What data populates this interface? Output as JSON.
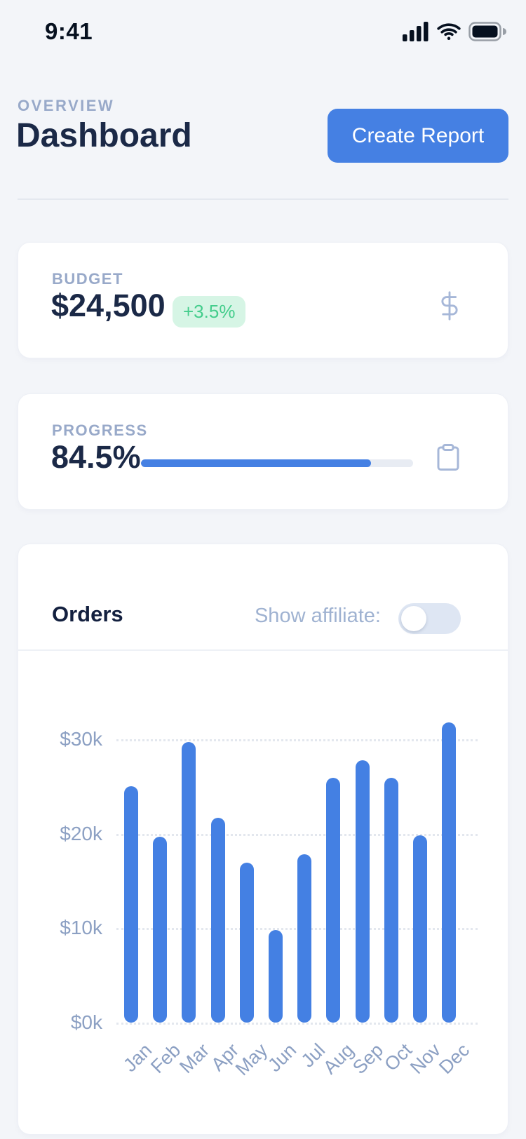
{
  "status_bar": {
    "time": "9:41"
  },
  "header": {
    "eyebrow": "OVERVIEW",
    "title": "Dashboard",
    "create_report_label": "Create Report"
  },
  "cards": {
    "budget": {
      "label": "BUDGET",
      "value": "$24,500",
      "delta": "+3.5%",
      "icon": "dollar-sign"
    },
    "progress": {
      "label": "PROGRESS",
      "value": "84.5%",
      "percent": 84.5,
      "icon": "clipboard"
    }
  },
  "orders": {
    "title": "Orders",
    "toggle_label": "Show affiliate:",
    "toggle_state": "off"
  },
  "chart_data": {
    "type": "bar",
    "title": "Orders",
    "categories": [
      "Jan",
      "Feb",
      "Mar",
      "Apr",
      "May",
      "Jun",
      "Jul",
      "Aug",
      "Sep",
      "Oct",
      "Nov",
      "Dec"
    ],
    "values": [
      25000,
      19700,
      29700,
      21700,
      16900,
      9800,
      17800,
      25900,
      27800,
      25900,
      19800,
      31800
    ],
    "xlabel": "",
    "ylabel": "",
    "ylim": [
      0,
      32000
    ],
    "y_ticks": [
      {
        "label": "$0k",
        "value": 0
      },
      {
        "label": "$10k",
        "value": 10000
      },
      {
        "label": "$20k",
        "value": 20000
      },
      {
        "label": "$30k",
        "value": 30000
      }
    ],
    "grid": "dotted-horizontal",
    "legend": "none",
    "bar_color": "#4480e3"
  },
  "colors": {
    "accent_blue": "#4580e3",
    "navy_text": "#1b2947",
    "muted_label": "#98a9c9",
    "green_text": "#44cd8c",
    "green_bg": "#d6f5e5",
    "background": "#f3f5f9",
    "card_bg": "#ffffff",
    "track_gray": "#e8ecf3",
    "toggle_track": "#dee6f3"
  }
}
